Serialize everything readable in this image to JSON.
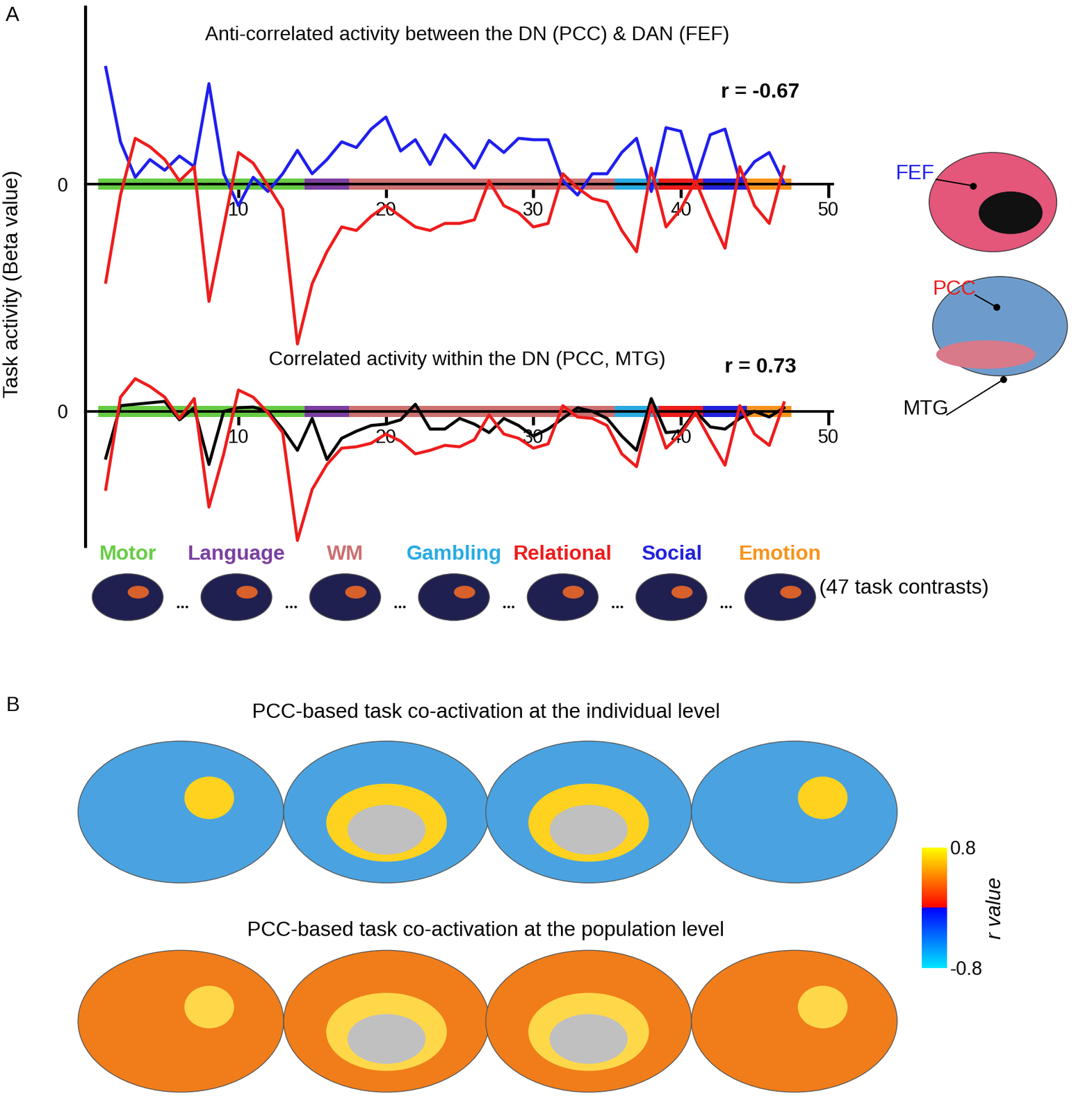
{
  "chart_data": [
    {
      "type": "line",
      "title": "Anti-correlated activity between the DN (PCC) & DAN (FEF)",
      "annotation": "r = -0.67",
      "y_label": "Task activity (Beta value)",
      "x": [
        1,
        2,
        3,
        4,
        5,
        6,
        7,
        8,
        9,
        10,
        11,
        12,
        13,
        14,
        15,
        16,
        17,
        18,
        19,
        20,
        21,
        22,
        23,
        24,
        25,
        26,
        27,
        28,
        29,
        30,
        31,
        32,
        33,
        34,
        35,
        36,
        37,
        38,
        39,
        40,
        41,
        42,
        43,
        44,
        45,
        46,
        47
      ],
      "series": [
        {
          "name": "FEF",
          "color": "#1f1fee",
          "values": [
            1.65,
            0.6,
            0.1,
            0.35,
            0.2,
            0.4,
            0.25,
            1.42,
            0.15,
            -0.3,
            0.1,
            -0.1,
            0.15,
            0.48,
            0.15,
            0.35,
            0.6,
            0.52,
            0.78,
            0.95,
            0.47,
            0.63,
            0.28,
            0.7,
            0.48,
            0.23,
            0.62,
            0.45,
            0.65,
            0.63,
            0.63,
            0.05,
            -0.15,
            0.15,
            0.15,
            0.45,
            0.65,
            -0.1,
            0.8,
            0.75,
            0.05,
            0.7,
            0.78,
            0.05,
            0.32,
            0.45,
            0.02
          ]
        },
        {
          "name": "PCC",
          "color": "#ee1c1c",
          "values": [
            -1.38,
            -0.15,
            0.65,
            0.53,
            0.35,
            0.05,
            0.25,
            -1.65,
            -0.6,
            0.45,
            0.3,
            -0.02,
            -0.35,
            -2.25,
            -1.4,
            -0.95,
            -0.6,
            -0.65,
            -0.45,
            -0.3,
            -0.45,
            -0.6,
            -0.65,
            -0.55,
            -0.55,
            -0.5,
            0.05,
            -0.3,
            -0.4,
            -0.6,
            -0.55,
            0.15,
            -0.05,
            -0.2,
            -0.25,
            -0.65,
            -0.95,
            0.23,
            -0.6,
            -0.35,
            0.05,
            -0.45,
            -0.9,
            0.25,
            -0.3,
            -0.55,
            0.25
          ]
        }
      ],
      "xlim": [
        -0.4,
        50.3
      ],
      "ylim": [
        -2.3,
        2.5
      ],
      "xticks": [
        10,
        20,
        30,
        40,
        50
      ],
      "yticks": [
        0
      ]
    },
    {
      "type": "line",
      "title": "Correlated activity within the DN (PCC, MTG)",
      "annotation": "r = 0.73",
      "x": [
        1,
        2,
        3,
        4,
        5,
        6,
        7,
        8,
        9,
        10,
        11,
        12,
        13,
        14,
        15,
        16,
        17,
        18,
        19,
        20,
        21,
        22,
        23,
        24,
        25,
        26,
        27,
        28,
        29,
        30,
        31,
        32,
        33,
        34,
        35,
        36,
        37,
        38,
        39,
        40,
        41,
        42,
        43,
        44,
        45,
        46,
        47
      ],
      "series": [
        {
          "name": "MTG",
          "color": "#000000",
          "values": [
            -0.66,
            0.08,
            0.1,
            0.12,
            0.14,
            -0.12,
            0.05,
            -0.75,
            0,
            0.05,
            0.06,
            0,
            -0.25,
            -0.55,
            -0.1,
            -0.68,
            -0.38,
            -0.28,
            -0.2,
            -0.18,
            -0.12,
            0.1,
            -0.25,
            -0.25,
            -0.1,
            -0.18,
            -0.3,
            -0.1,
            -0.2,
            -0.35,
            -0.25,
            -0.1,
            0.05,
            0,
            -0.1,
            -0.35,
            -0.55,
            0.18,
            -0.3,
            -0.28,
            0,
            -0.22,
            -0.25,
            -0.1,
            0,
            -0.08,
            0.05
          ]
        },
        {
          "name": "PCC",
          "color": "#ee1c1c",
          "values": [
            -1.1,
            0.2,
            0.46,
            0.35,
            0.2,
            -0.1,
            0.18,
            -1.35,
            -0.6,
            0.3,
            0.2,
            -0.02,
            -0.3,
            -1.82,
            -1.1,
            -0.75,
            -0.52,
            -0.5,
            -0.45,
            -0.32,
            -0.42,
            -0.6,
            -0.55,
            -0.48,
            -0.5,
            -0.4,
            -0.05,
            -0.32,
            -0.38,
            -0.52,
            -0.46,
            0.08,
            -0.08,
            -0.1,
            -0.2,
            -0.6,
            -0.78,
            0.08,
            -0.52,
            -0.32,
            -0.02,
            -0.4,
            -0.76,
            0.08,
            -0.32,
            -0.48,
            0.12
          ]
        }
      ],
      "xlim": [
        -0.4,
        50.3
      ],
      "ylim": [
        -1.9,
        0.9
      ],
      "xticks": [
        10,
        20,
        30,
        40,
        50
      ],
      "yticks": [
        0
      ]
    }
  ],
  "tasks": [
    {
      "name": "Motor",
      "color": "#66cc44",
      "start": 0.5,
      "end": 14.5
    },
    {
      "name": "Language",
      "color": "#7b3fa0",
      "start": 14.5,
      "end": 17.5
    },
    {
      "name": "WM",
      "color": "#cc7070",
      "start": 17.5,
      "end": 35.5
    },
    {
      "name": "Gambling",
      "color": "#29abe2",
      "start": 35.5,
      "end": 38.5
    },
    {
      "name": "Relational",
      "color": "#ee1c1c",
      "start": 38.5,
      "end": 41.5
    },
    {
      "name": "Social",
      "color": "#2222dd",
      "start": 41.5,
      "end": 44.5
    },
    {
      "name": "Emotion",
      "color": "#f7941d",
      "start": 44.5,
      "end": 47.5
    }
  ],
  "task_note": "(47 task contrasts)",
  "panel_labels": [
    "A",
    "B"
  ],
  "panel_b": {
    "titles": [
      "PCC-based task co-activation at the individual level",
      "PCC-based task co-activation at the population level"
    ],
    "colorbar": {
      "label": "r value",
      "lim": [
        -0.8,
        0.8
      ],
      "ticks": [
        0.8,
        -0.8
      ]
    }
  }
}
